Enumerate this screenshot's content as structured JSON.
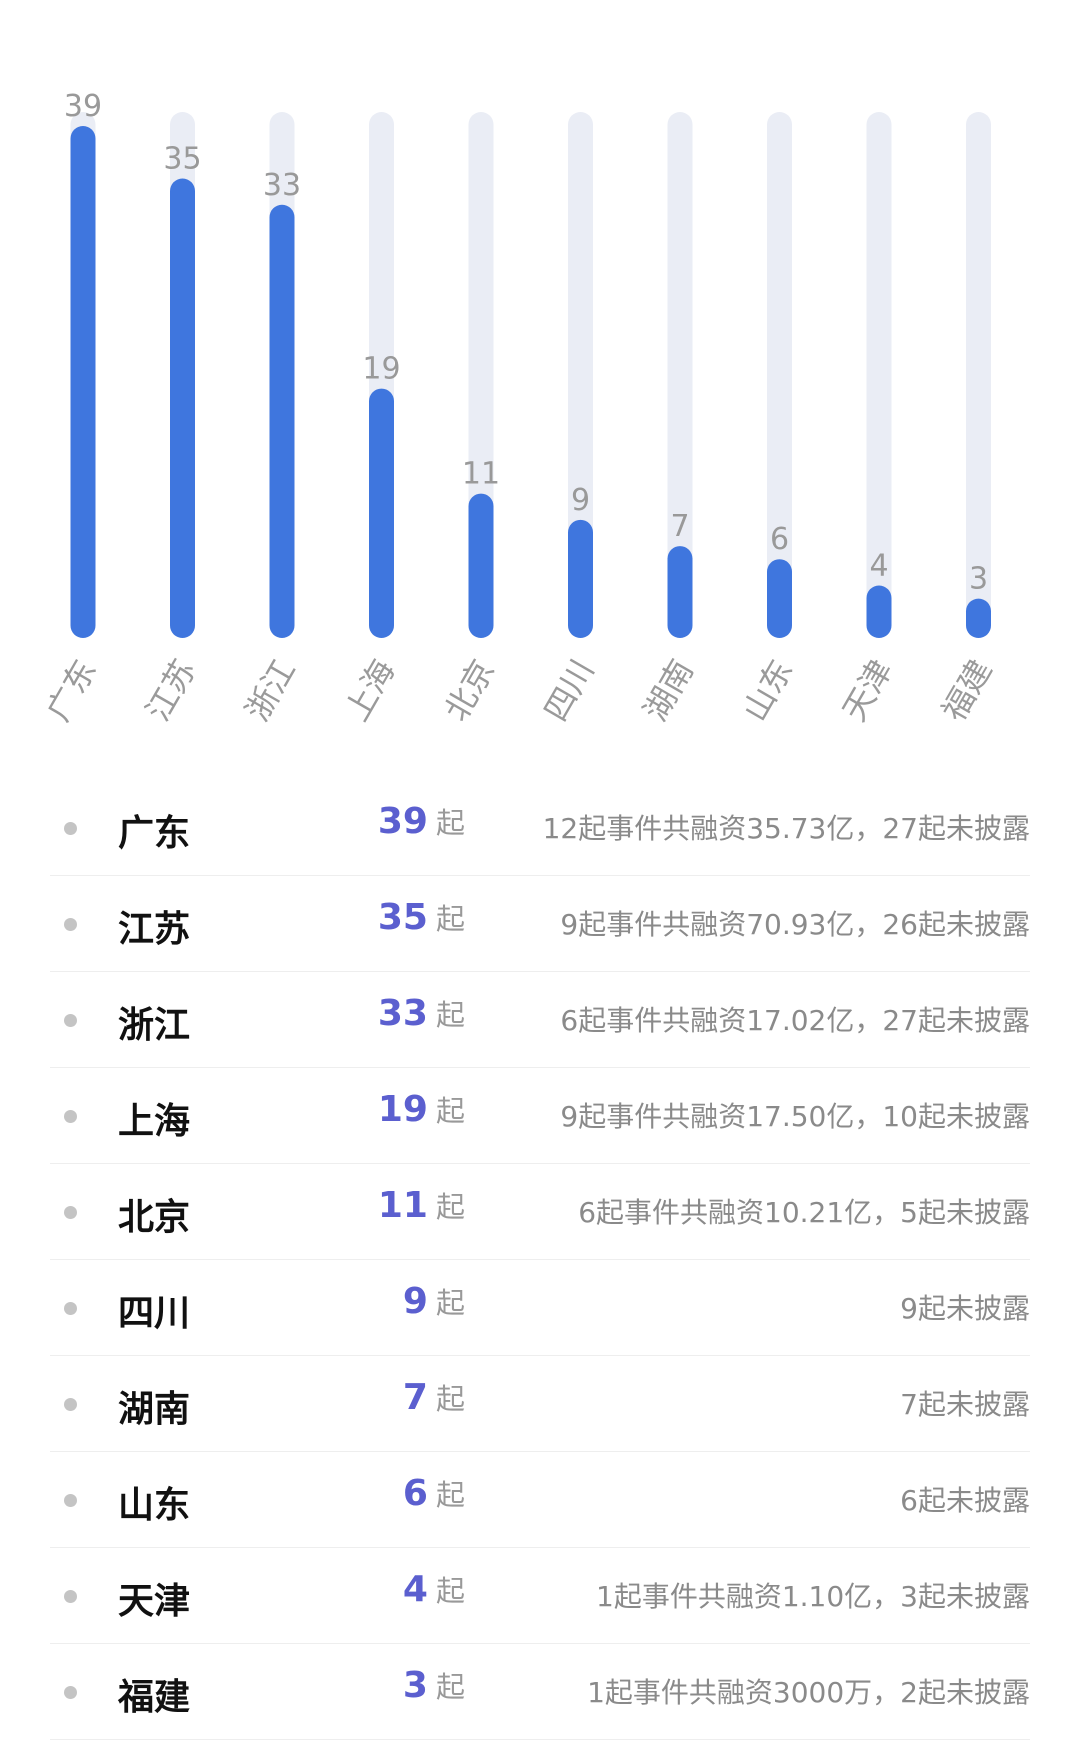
{
  "chart_data": {
    "type": "bar",
    "categories": [
      "广东",
      "江苏",
      "浙江",
      "上海",
      "北京",
      "四川",
      "湖南",
      "山东",
      "天津",
      "福建"
    ],
    "values": [
      39,
      35,
      33,
      19,
      11,
      9,
      7,
      6,
      4,
      3
    ],
    "title": "",
    "xlabel": "",
    "ylabel": "",
    "ylim": [
      0,
      39
    ],
    "grid": false,
    "legend": "none",
    "colors": {
      "bar": "#3f76de",
      "track": "#eaedf5",
      "value_label": "#999999",
      "category_label": "#9a9a9a"
    }
  },
  "table": {
    "unit": "起",
    "rows": [
      {
        "province": "广东",
        "count": "39",
        "detail": "12起事件共融资35.73亿，27起未披露"
      },
      {
        "province": "江苏",
        "count": "35",
        "detail": "9起事件共融资70.93亿，26起未披露"
      },
      {
        "province": "浙江",
        "count": "33",
        "detail": "6起事件共融资17.02亿，27起未披露"
      },
      {
        "province": "上海",
        "count": "19",
        "detail": "9起事件共融资17.50亿，10起未披露"
      },
      {
        "province": "北京",
        "count": "11",
        "detail": "6起事件共融资10.21亿，5起未披露"
      },
      {
        "province": "四川",
        "count": "9",
        "detail": "9起未披露"
      },
      {
        "province": "湖南",
        "count": "7",
        "detail": "7起未披露"
      },
      {
        "province": "山东",
        "count": "6",
        "detail": "6起未披露"
      },
      {
        "province": "天津",
        "count": "4",
        "detail": "1起事件共融资1.10亿，3起未披露"
      },
      {
        "province": "福建",
        "count": "3",
        "detail": "1起事件共融资3000万，2起未披露"
      }
    ]
  }
}
